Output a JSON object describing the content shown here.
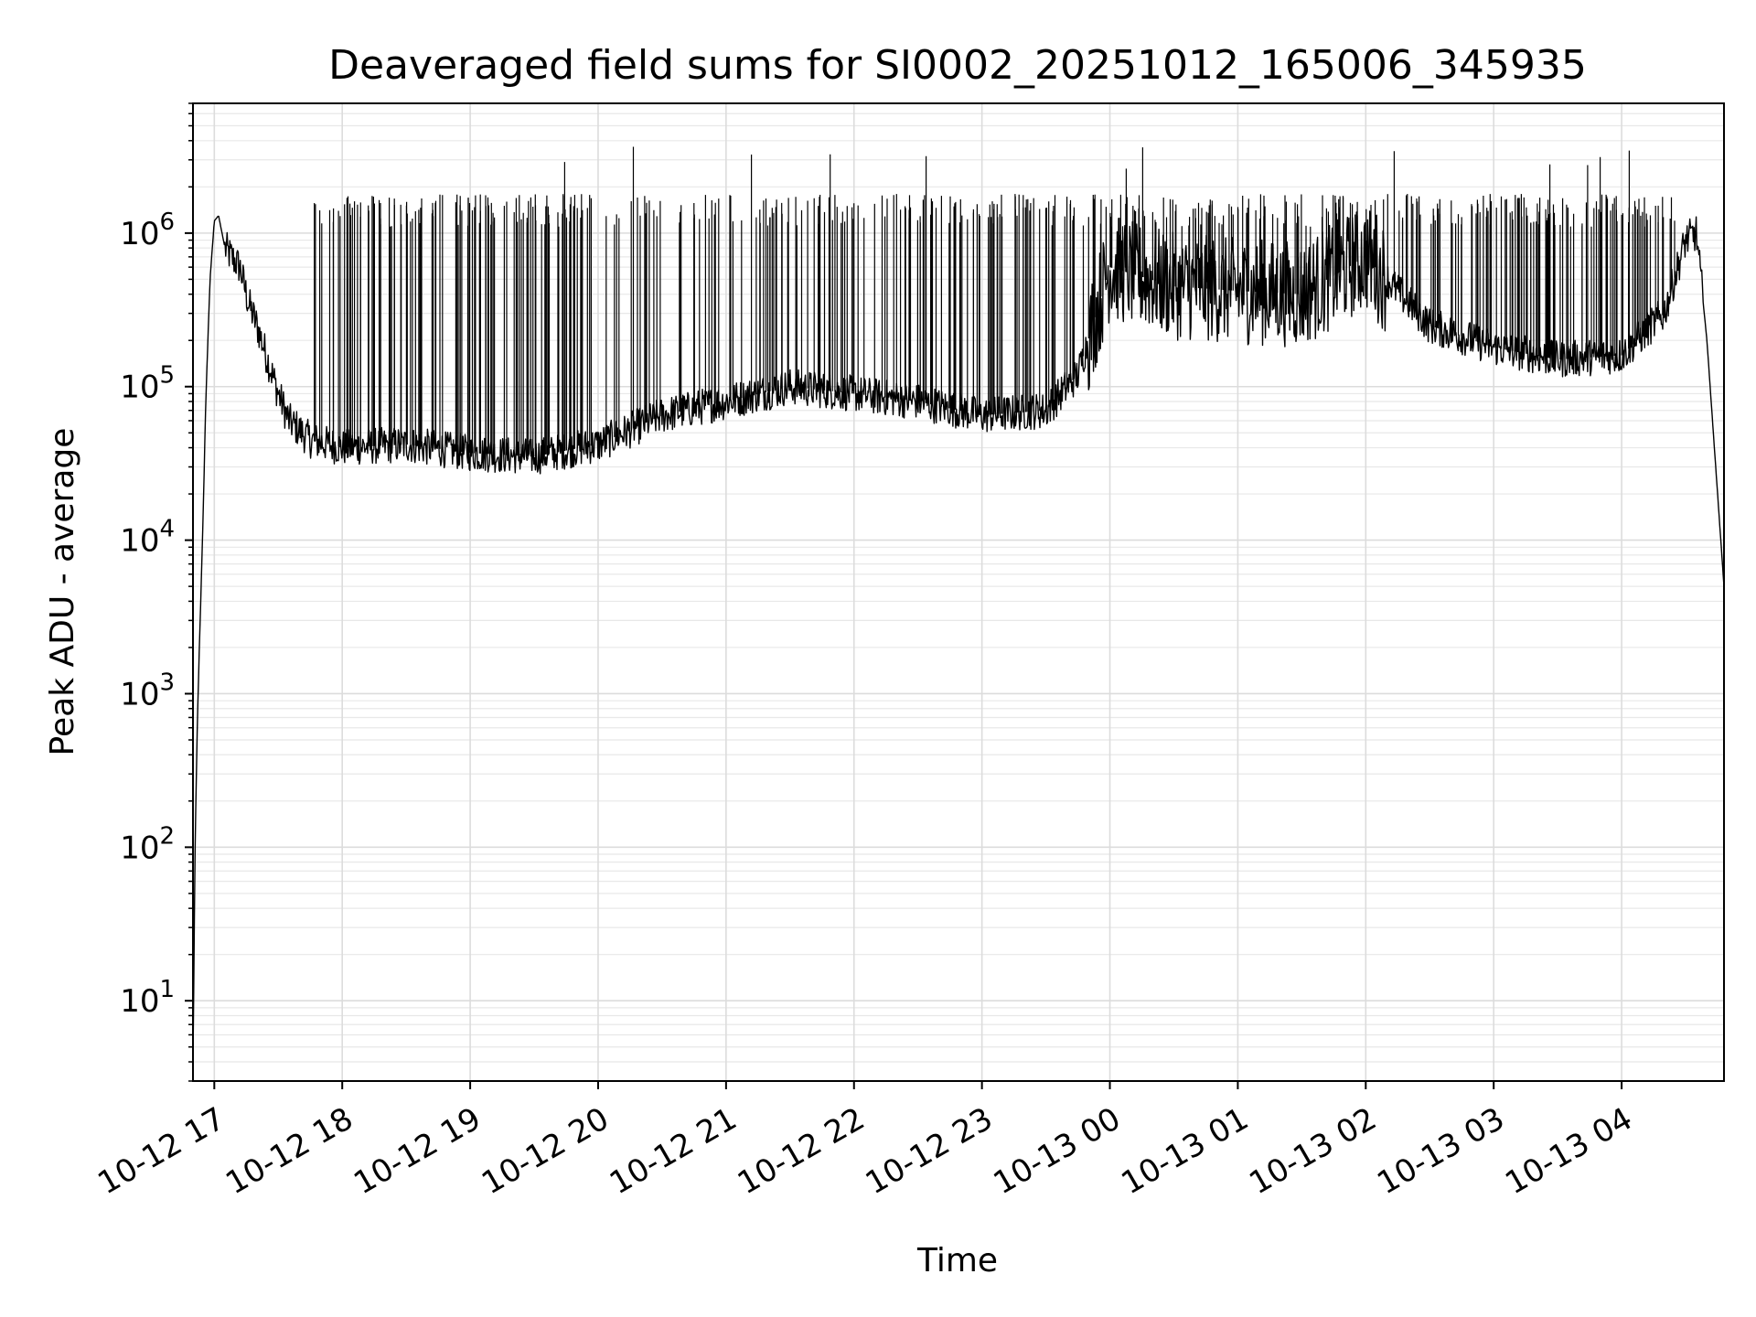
{
  "chart_data": {
    "type": "line",
    "title": "Deaveraged field sums for SI0002_20251012_165006_345935",
    "xlabel": "Time",
    "ylabel": "Peak ADU - average",
    "yscale": "log",
    "ylim": [
      3,
      7000000
    ],
    "xlim": [
      "2025-10-12 16:50",
      "2025-10-13 04:48"
    ],
    "grid": true,
    "line_color": "#000000",
    "x_ticks": [
      {
        "t": "2025-10-12 17:00",
        "label": "10-12 17"
      },
      {
        "t": "2025-10-12 18:00",
        "label": "10-12 18"
      },
      {
        "t": "2025-10-12 19:00",
        "label": "10-12 19"
      },
      {
        "t": "2025-10-12 20:00",
        "label": "10-12 20"
      },
      {
        "t": "2025-10-12 21:00",
        "label": "10-12 21"
      },
      {
        "t": "2025-10-12 22:00",
        "label": "10-12 22"
      },
      {
        "t": "2025-10-12 23:00",
        "label": "10-12 23"
      },
      {
        "t": "2025-10-13 00:00",
        "label": "10-13 00"
      },
      {
        "t": "2025-10-13 01:00",
        "label": "10-13 01"
      },
      {
        "t": "2025-10-13 02:00",
        "label": "10-13 02"
      },
      {
        "t": "2025-10-13 03:00",
        "label": "10-13 03"
      },
      {
        "t": "2025-10-13 04:00",
        "label": "10-13 04"
      }
    ],
    "y_ticks": [
      {
        "value": 10,
        "base": "10",
        "exp": "1"
      },
      {
        "value": 100,
        "base": "10",
        "exp": "2"
      },
      {
        "value": 1000,
        "base": "10",
        "exp": "3"
      },
      {
        "value": 10000,
        "base": "10",
        "exp": "4"
      },
      {
        "value": 100000,
        "base": "10",
        "exp": "5"
      },
      {
        "value": 1000000,
        "base": "10",
        "exp": "6"
      }
    ],
    "series": [
      {
        "x": [
          "2025-10-12 16:50",
          "2025-10-12 16:51",
          "2025-10-12 16:52",
          "2025-10-12 16:53",
          "2025-10-12 16:54",
          "2025-10-12 16:55",
          "2025-10-12 16:56",
          "2025-10-12 16:58",
          "2025-10-12 17:00",
          "2025-10-12 17:02",
          "2025-10-12 17:05",
          "2025-10-12 17:08",
          "2025-10-12 17:12",
          "2025-10-12 17:16",
          "2025-10-12 17:20",
          "2025-10-12 17:25",
          "2025-10-12 17:30",
          "2025-10-12 17:35",
          "2025-10-12 17:45",
          "2025-10-12 18:00",
          "2025-10-12 18:30",
          "2025-10-12 19:00",
          "2025-10-12 19:30",
          "2025-10-12 20:00",
          "2025-10-12 20:30",
          "2025-10-12 21:00",
          "2025-10-12 21:30",
          "2025-10-12 22:00",
          "2025-10-12 22:30",
          "2025-10-12 23:00",
          "2025-10-12 23:30",
          "2025-10-12 23:45",
          "2025-10-13 00:00",
          "2025-10-13 00:30",
          "2025-10-13 01:00",
          "2025-10-13 01:30",
          "2025-10-13 02:00",
          "2025-10-13 02:30",
          "2025-10-13 03:00",
          "2025-10-13 03:30",
          "2025-10-13 04:00",
          "2025-10-13 04:20",
          "2025-10-13 04:30",
          "2025-10-13 04:35",
          "2025-10-13 04:40",
          "2025-10-13 04:45",
          "2025-10-13 04:48"
        ],
        "y": [
          4,
          100,
          600,
          2000,
          6000,
          20000,
          80000,
          500000,
          1200000,
          1300000,
          800000,
          700000,
          600000,
          350000,
          250000,
          150000,
          90000,
          60000,
          45000,
          40000,
          42000,
          37000,
          35000,
          42000,
          65000,
          80000,
          100000,
          90000,
          80000,
          65000,
          70000,
          120000,
          600000,
          450000,
          420000,
          400000,
          700000,
          250000,
          180000,
          150000,
          160000,
          300000,
          900000,
          1000000,
          200000,
          20000,
          5000
        ]
      }
    ]
  }
}
